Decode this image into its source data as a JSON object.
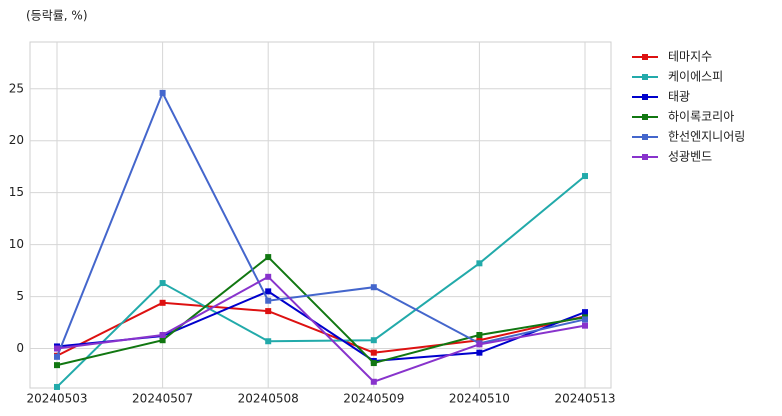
{
  "chart_data": {
    "type": "line",
    "title": "(등락률, %)",
    "categories": [
      "20240503",
      "20240507",
      "20240508",
      "20240509",
      "20240510",
      "20240513"
    ],
    "series": [
      {
        "name": "테마지수",
        "color": "#dd1111",
        "values": [
          -0.7,
          4.4,
          3.6,
          -0.4,
          0.8,
          3.1
        ]
      },
      {
        "name": "케이에스피",
        "color": "#22aaaa",
        "values": [
          -3.7,
          6.3,
          0.7,
          0.8,
          8.2,
          16.6
        ]
      },
      {
        "name": "태광",
        "color": "#0000cc",
        "values": [
          0.2,
          1.2,
          5.5,
          -1.2,
          -0.4,
          3.5
        ]
      },
      {
        "name": "하이록코리아",
        "color": "#117711",
        "values": [
          -1.6,
          0.8,
          8.8,
          -1.4,
          1.3,
          3.0
        ]
      },
      {
        "name": "한선엔지니어링",
        "color": "#4466cc",
        "values": [
          -0.8,
          24.6,
          4.6,
          5.9,
          0.5,
          2.8
        ]
      },
      {
        "name": "성광벤드",
        "color": "#8833cc",
        "values": [
          0.0,
          1.3,
          6.9,
          -3.2,
          0.4,
          2.2
        ]
      }
    ],
    "ylim": [
      -3.8,
      29.5
    ],
    "yticks": [
      0,
      5,
      10,
      15,
      20,
      25
    ],
    "grid": true,
    "legend": "outside-right"
  }
}
